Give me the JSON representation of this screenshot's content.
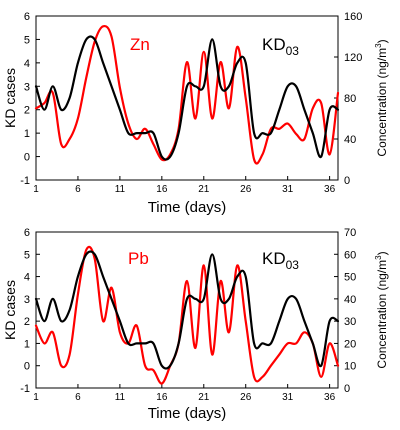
{
  "colors": {
    "kd": "#000000",
    "metal": "#ff0000",
    "axis": "#000000"
  },
  "chart_data": [
    {
      "type": "line",
      "annotation_metal": "Zn",
      "annotation_kd": "KD",
      "annotation_kd_sub": "03",
      "xlabel": "Time (days)",
      "ylabel_left": "KD cases",
      "ylabel_right": "Concentration (ng/m",
      "ylabel_right_sup": "3",
      "ylabel_right_tail": ")",
      "xlim": [
        1,
        37
      ],
      "xticks": [
        1,
        6,
        11,
        16,
        21,
        26,
        31,
        36
      ],
      "ylim_left": [
        -1,
        6
      ],
      "yticks_left": [
        -1,
        0,
        1,
        2,
        3,
        4,
        5,
        6
      ],
      "ylim_right": [
        0,
        160
      ],
      "yticks_right": [
        0,
        40,
        80,
        120,
        160
      ],
      "series": [
        {
          "axis": "left",
          "color_key": "kd",
          "x": [
            1,
            2,
            3,
            4,
            5,
            6,
            7,
            8,
            9,
            10,
            11,
            12,
            13,
            14,
            15,
            16,
            17,
            18,
            19,
            20,
            21,
            22,
            23,
            24,
            25,
            26,
            27,
            28,
            29,
            30,
            31,
            32,
            33,
            34,
            35,
            36,
            37
          ],
          "y": [
            3,
            2,
            3,
            2,
            2.5,
            4,
            5,
            5,
            4,
            3,
            2,
            1,
            1,
            1,
            1,
            0,
            0,
            1,
            3,
            3,
            3,
            5,
            3,
            3,
            4,
            4,
            1,
            1,
            1,
            2,
            3,
            3,
            2,
            1,
            0,
            2,
            2
          ]
        },
        {
          "axis": "right",
          "color_key": "metal",
          "x": [
            1,
            2,
            3,
            4,
            5,
            6,
            7,
            8,
            9,
            10,
            11,
            12,
            13,
            14,
            15,
            16,
            17,
            18,
            19,
            20,
            21,
            22,
            23,
            24,
            25,
            26,
            27,
            28,
            29,
            30,
            31,
            32,
            33,
            34,
            35,
            36,
            37
          ],
          "y": [
            70,
            75,
            85,
            35,
            40,
            60,
            100,
            135,
            150,
            140,
            90,
            55,
            40,
            50,
            35,
            20,
            25,
            50,
            115,
            60,
            125,
            60,
            115,
            70,
            130,
            80,
            20,
            25,
            50,
            50,
            55,
            45,
            40,
            70,
            75,
            25,
            85
          ]
        }
      ]
    },
    {
      "type": "line",
      "annotation_metal": "Pb",
      "annotation_kd": "KD",
      "annotation_kd_sub": "03",
      "xlabel": "Time (days)",
      "ylabel_left": "KD cases",
      "ylabel_right": "Concentration (ng/m",
      "ylabel_right_sup": "3",
      "ylabel_right_tail": ")",
      "xlim": [
        1,
        37
      ],
      "xticks": [
        1,
        6,
        11,
        16,
        21,
        26,
        31,
        36
      ],
      "ylim_left": [
        -1,
        6
      ],
      "yticks_left": [
        -1,
        0,
        1,
        2,
        3,
        4,
        5,
        6
      ],
      "ylim_right": [
        0,
        70
      ],
      "yticks_right": [
        0,
        10,
        20,
        30,
        40,
        50,
        60,
        70
      ],
      "series": [
        {
          "axis": "left",
          "color_key": "kd",
          "x": [
            1,
            2,
            3,
            4,
            5,
            6,
            7,
            8,
            9,
            10,
            11,
            12,
            13,
            14,
            15,
            16,
            17,
            18,
            19,
            20,
            21,
            22,
            23,
            24,
            25,
            26,
            27,
            28,
            29,
            30,
            31,
            32,
            33,
            34,
            35,
            36,
            37
          ],
          "y": [
            3,
            2,
            3,
            2,
            2.5,
            4,
            5,
            5,
            4,
            3,
            2,
            1,
            1,
            1,
            1,
            0,
            0,
            1,
            3,
            3,
            3,
            5,
            3,
            3,
            4,
            4,
            1,
            1,
            1,
            2,
            3,
            3,
            2,
            1,
            0,
            2,
            2
          ]
        },
        {
          "axis": "right",
          "color_key": "metal",
          "x": [
            1,
            2,
            3,
            4,
            5,
            6,
            7,
            8,
            9,
            10,
            11,
            12,
            13,
            14,
            15,
            16,
            17,
            18,
            19,
            20,
            21,
            22,
            23,
            24,
            25,
            26,
            27,
            28,
            29,
            30,
            31,
            32,
            33,
            34,
            35,
            36,
            37
          ],
          "y": [
            28,
            20,
            25,
            10,
            15,
            42,
            62,
            58,
            30,
            45,
            25,
            20,
            28,
            10,
            8,
            2,
            10,
            20,
            48,
            18,
            55,
            15,
            48,
            25,
            55,
            30,
            5,
            5,
            10,
            15,
            20,
            20,
            25,
            20,
            5,
            20,
            10
          ]
        }
      ]
    }
  ]
}
